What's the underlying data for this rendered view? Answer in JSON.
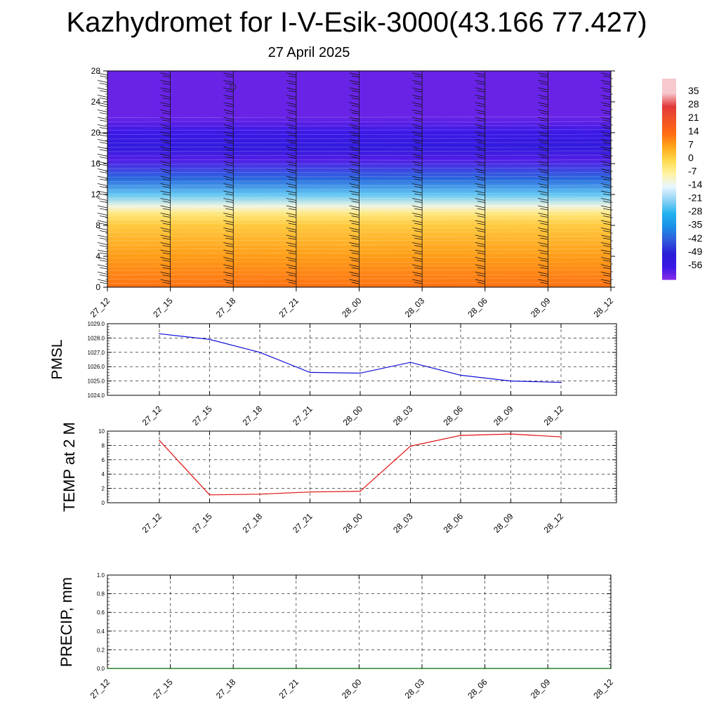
{
  "title": "Kazhydromet for I-V-Esik-3000(43.166 77.427)",
  "subtitle": "27 April 2025",
  "chart_data": [
    {
      "type": "heatmap",
      "name": "cross-section",
      "x_categories": [
        "27_12",
        "27_15",
        "27_18",
        "27_21",
        "28_00",
        "28_03",
        "28_06",
        "28_09",
        "28_12"
      ],
      "y_ticks": [
        0,
        4,
        8,
        12,
        16,
        20,
        24,
        28
      ],
      "ylim": [
        0,
        28
      ],
      "temperature_profile": [
        {
          "y": 0,
          "t": 13
        },
        {
          "y": 4,
          "t": 8
        },
        {
          "y": 8,
          "t": 2
        },
        {
          "y": 9.5,
          "t": -4
        },
        {
          "y": 10.5,
          "t": -12
        },
        {
          "y": 12,
          "t": -24
        },
        {
          "y": 14,
          "t": -40
        },
        {
          "y": 16.5,
          "t": -58
        },
        {
          "y": 18,
          "t": -52
        },
        {
          "y": 20,
          "t": -56
        },
        {
          "y": 22,
          "t": -60
        },
        {
          "y": 28,
          "t": -60
        }
      ],
      "colorbar_labels": [
        "35",
        "28",
        "21",
        "14",
        "7",
        "0",
        "-7",
        "-14",
        "-21",
        "-28",
        "-35",
        "-42",
        "-49",
        "-56"
      ],
      "colorbar_values": [
        35,
        28,
        21,
        14,
        7,
        0,
        -7,
        -14,
        -21,
        -28,
        -35,
        -42,
        -49,
        -56
      ],
      "colorbar_stops": [
        {
          "v": 35,
          "c": "#f7c9cf"
        },
        {
          "v": 28,
          "c": "#e23a3a"
        },
        {
          "v": 14,
          "c": "#ff6a12"
        },
        {
          "v": 7,
          "c": "#ffa518"
        },
        {
          "v": 0,
          "c": "#ffd84a"
        },
        {
          "v": -7,
          "c": "#fff3a0"
        },
        {
          "v": -14,
          "c": "#e8f6ff"
        },
        {
          "v": -21,
          "c": "#8fd3f5"
        },
        {
          "v": -28,
          "c": "#23b4ef"
        },
        {
          "v": -35,
          "c": "#1a8fe6"
        },
        {
          "v": -42,
          "c": "#2f5bdc"
        },
        {
          "v": -49,
          "c": "#2a1ed6"
        },
        {
          "v": -56,
          "c": "#3b18e6"
        },
        {
          "v": -63,
          "c": "#8a2be8"
        }
      ]
    },
    {
      "type": "line",
      "name": "pmsl",
      "ylabel": "PMSL",
      "categories": [
        "27_12",
        "27_15",
        "27_18",
        "27_21",
        "28_00",
        "28_03",
        "28_06",
        "28_09",
        "28_12"
      ],
      "values": [
        1028.3,
        1027.9,
        1027.0,
        1025.6,
        1025.55,
        1026.3,
        1025.4,
        1025.0,
        1024.9
      ],
      "ylim": [
        1024.0,
        1029.0
      ],
      "yticks": [
        "1024.0",
        "1025.0",
        "1026.0",
        "1027.0",
        "1028.0",
        "1029.0"
      ],
      "color": "#1010d8"
    },
    {
      "type": "line",
      "name": "temp2m",
      "ylabel": "TEMP at 2 M",
      "categories": [
        "27_12",
        "27_15",
        "27_18",
        "27_21",
        "28_00",
        "28_03",
        "28_06",
        "28_09",
        "28_12"
      ],
      "values": [
        8.7,
        1.1,
        1.2,
        1.5,
        1.6,
        7.9,
        9.4,
        9.6,
        9.2
      ],
      "ylim": [
        0,
        10
      ],
      "yticks": [
        "0",
        "2",
        "4",
        "6",
        "8",
        "10"
      ],
      "color": "#e01010"
    },
    {
      "type": "line",
      "name": "precip",
      "ylabel": "PRECIP, mm",
      "categories": [
        "27_12",
        "27_15",
        "27_18",
        "27_21",
        "28_00",
        "28_03",
        "28_06",
        "28_09",
        "28_12"
      ],
      "values": [
        0,
        0,
        0,
        0,
        0,
        0,
        0,
        0,
        0
      ],
      "ylim": [
        0,
        1
      ],
      "yticks": [
        "0.0",
        "0.2",
        "0.4",
        "0.6",
        "0.8",
        "1.0"
      ],
      "color": "#006400"
    }
  ]
}
